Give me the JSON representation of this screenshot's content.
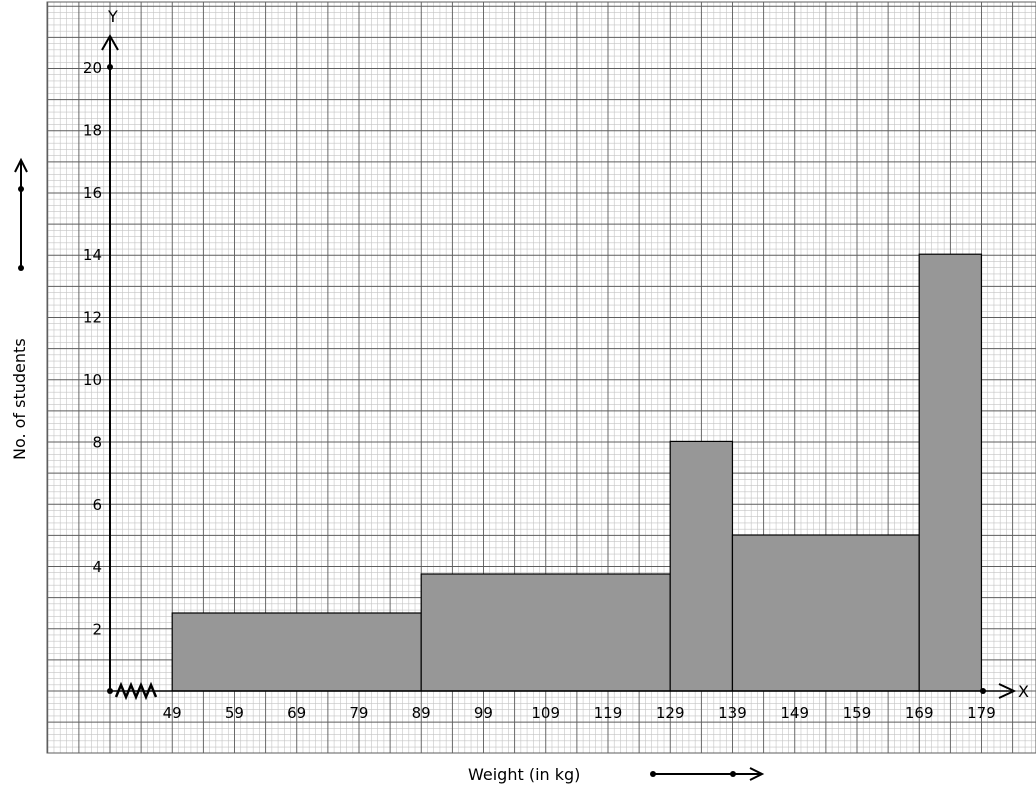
{
  "chart_data": {
    "type": "bar",
    "title": "",
    "xlabel": "Weight (in kg)",
    "ylabel": "No. of students",
    "x_axis_letter": "X",
    "y_axis_letter": "Y",
    "x_tick_labels": [
      "49",
      "59",
      "69",
      "79",
      "89",
      "99",
      "109",
      "119",
      "129",
      "139",
      "149",
      "159",
      "169",
      "179"
    ],
    "y_tick_labels": [
      "2",
      "4",
      "6",
      "8",
      "10",
      "12",
      "14",
      "16",
      "18",
      "20"
    ],
    "ylim": [
      0,
      20
    ],
    "x_range": [
      49,
      179
    ],
    "axis_break": true,
    "grid": true,
    "bars": [
      {
        "class_start": 49,
        "class_end": 89,
        "height": 2.5
      },
      {
        "class_start": 89,
        "class_end": 129,
        "height": 3.75
      },
      {
        "class_start": 129,
        "class_end": 139,
        "height": 8
      },
      {
        "class_start": 139,
        "class_end": 169,
        "height": 5
      },
      {
        "class_start": 169,
        "class_end": 179,
        "height": 14
      }
    ],
    "colors": {
      "bar_fill": "#979797",
      "bar_stroke": "#000000",
      "grid_minor": "#c4c4c4",
      "grid_major": "#5e5e5e",
      "axis": "#000000"
    }
  }
}
